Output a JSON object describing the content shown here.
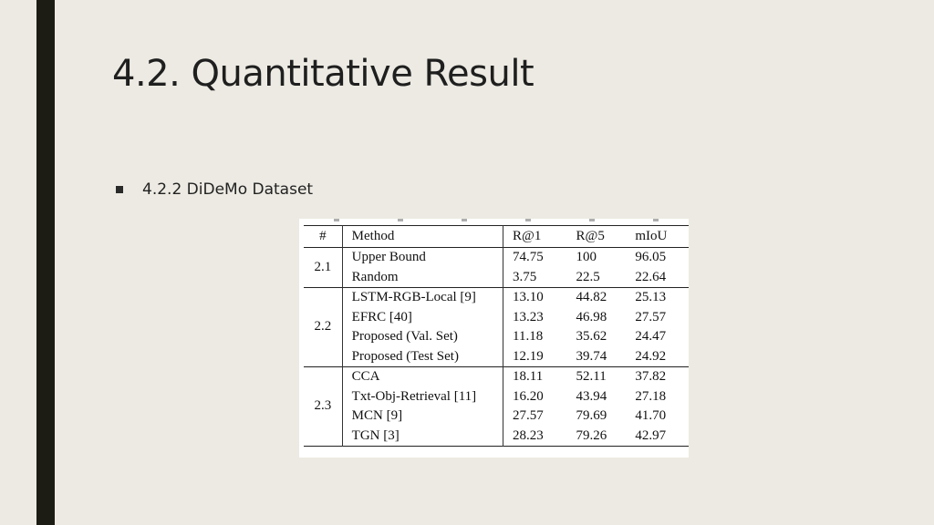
{
  "slide": {
    "title": "4.2. Quantitative Result",
    "bullet": "4.2.2 DiDeMo Dataset"
  },
  "table": {
    "headers": [
      "#",
      "Method",
      "R@1",
      "R@5",
      "mIoU"
    ],
    "groups": [
      {
        "id": "2.1",
        "rows": [
          {
            "method": "Upper Bound",
            "r1": "74.75",
            "r5": "100",
            "miou": "96.05"
          },
          {
            "method": "Random",
            "r1": "3.75",
            "r5": "22.5",
            "miou": "22.64"
          }
        ]
      },
      {
        "id": "2.2",
        "rows": [
          {
            "method": "LSTM-RGB-Local [9]",
            "r1": "13.10",
            "r5": "44.82",
            "miou": "25.13"
          },
          {
            "method": "EFRC [40]",
            "r1": "13.23",
            "r5": "46.98",
            "miou": "27.57"
          },
          {
            "method": "Proposed (Val. Set)",
            "r1": "11.18",
            "r5": "35.62",
            "miou": "24.47"
          },
          {
            "method": "Proposed (Test Set)",
            "r1": "12.19",
            "r5": "39.74",
            "miou": "24.92"
          }
        ]
      },
      {
        "id": "2.3",
        "rows": [
          {
            "method": "CCA",
            "r1": "18.11",
            "r5": "52.11",
            "miou": "37.82"
          },
          {
            "method": "Txt-Obj-Retrieval [11]",
            "r1": "16.20",
            "r5": "43.94",
            "miou": "27.18"
          },
          {
            "method": "MCN [9]",
            "r1": "27.57",
            "r5": "79.69",
            "miou": "41.70"
          },
          {
            "method": "TGN [3]",
            "r1": "28.23",
            "r5": "79.26",
            "miou": "42.97"
          }
        ]
      }
    ]
  }
}
